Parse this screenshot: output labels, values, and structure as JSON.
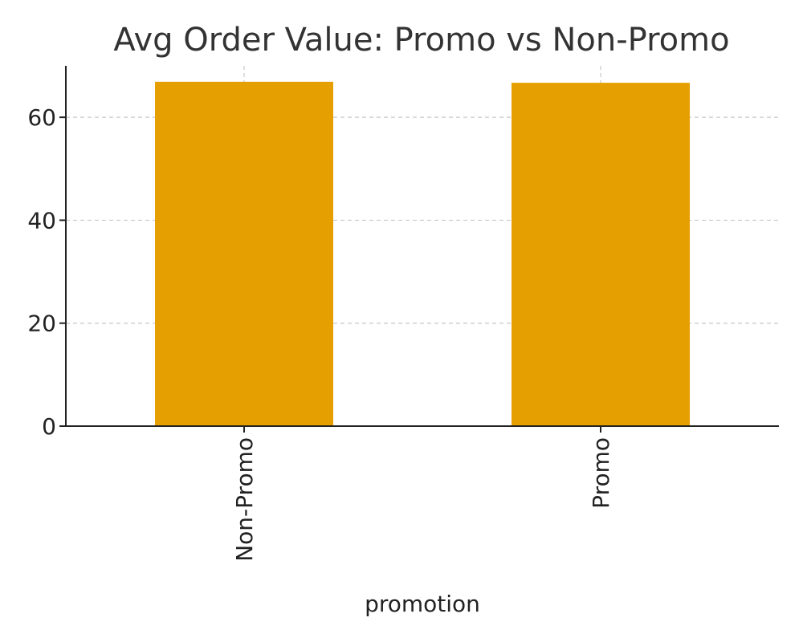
{
  "chart_data": {
    "type": "bar",
    "title": "Avg Order Value: Promo vs Non-Promo",
    "xlabel": "promotion",
    "ylabel": "",
    "categories": [
      "Non-Promo",
      "Promo"
    ],
    "values": [
      66.9,
      66.7
    ],
    "ylim": [
      0,
      70
    ],
    "yticks": [
      0,
      20,
      40,
      60
    ],
    "ytick_labels": [
      "0",
      "20",
      "40",
      "60"
    ],
    "grid": true,
    "legend": "none",
    "colors": {
      "bar": "#E69F00"
    }
  }
}
